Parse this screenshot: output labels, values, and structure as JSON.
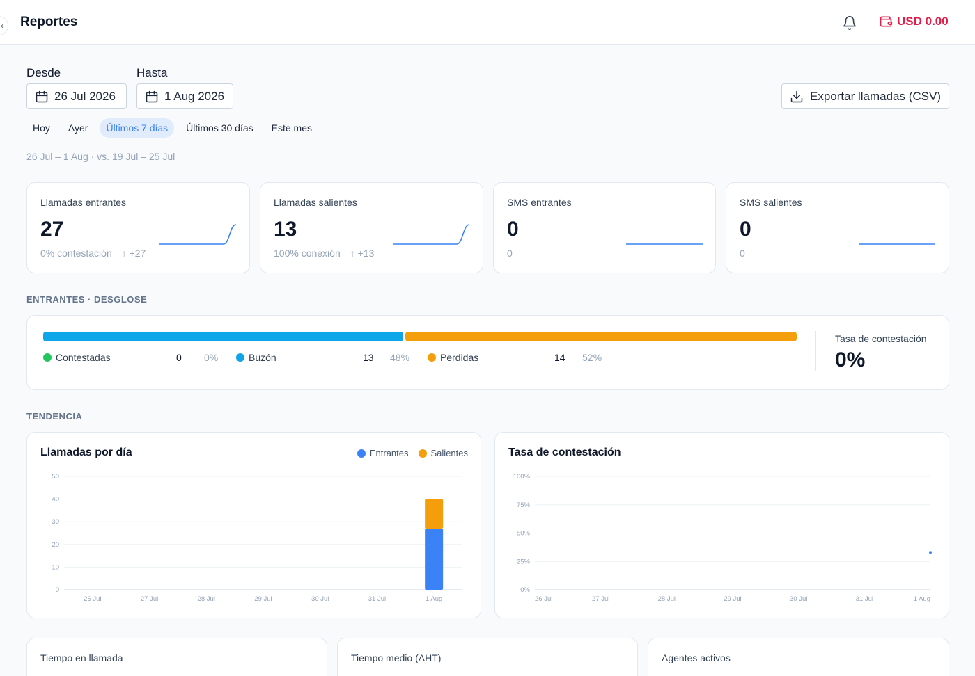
{
  "header": {
    "title": "Reportes",
    "balance": "USD 0.00"
  },
  "filters": {
    "from_label": "Desde",
    "to_label": "Hasta",
    "from_date": "26 Jul 2026",
    "to_date": "1 Aug 2026",
    "export_label": "Exportar llamadas (CSV)",
    "presets": [
      "Hoy",
      "Ayer",
      "Últimos 7 días",
      "Últimos 30 días",
      "Este mes"
    ],
    "active_preset": "Últimos 7 días",
    "range_text": "26 Jul – 1 Aug · vs. 19 Jul – 25 Jul"
  },
  "kpis": [
    {
      "label": "Llamadas entrantes",
      "value": "27",
      "sub": "0% contestación",
      "delta": "+27",
      "spark": [
        0,
        0,
        0,
        0,
        0,
        0,
        27
      ]
    },
    {
      "label": "Llamadas salientes",
      "value": "13",
      "sub": "100% conexión",
      "delta": "+13",
      "spark": [
        0,
        0,
        0,
        0,
        0,
        0,
        13
      ]
    },
    {
      "label": "SMS entrantes",
      "value": "0",
      "sub": "0",
      "delta": "",
      "spark": [
        0,
        0,
        0,
        0,
        0,
        0,
        0
      ]
    },
    {
      "label": "SMS salientes",
      "value": "0",
      "sub": "0",
      "delta": "",
      "spark": [
        0,
        0,
        0,
        0,
        0,
        0,
        0
      ]
    }
  ],
  "breakdown": {
    "section_title": "ENTRANTES · DESGLOSE",
    "items": [
      {
        "name": "Contestadas",
        "count": "0",
        "pct": "0%",
        "color": "#22c55e",
        "share": 0
      },
      {
        "name": "Buzón",
        "count": "13",
        "pct": "48%",
        "color": "#0ea5e9",
        "share": 0.48
      },
      {
        "name": "Perdidas",
        "count": "14",
        "pct": "52%",
        "color": "#f59e0b",
        "share": 0.52
      }
    ],
    "rate_label": "Tasa de contestación",
    "rate_value": "0%"
  },
  "trend": {
    "section_title": "TENDENCIA"
  },
  "chart_data": [
    {
      "type": "bar",
      "title": "Llamadas por día",
      "categories": [
        "26 Jul",
        "27 Jul",
        "28 Jul",
        "29 Jul",
        "30 Jul",
        "31 Jul",
        "1 Aug"
      ],
      "series": [
        {
          "name": "Entrantes",
          "values": [
            0,
            0,
            0,
            0,
            0,
            0,
            27
          ],
          "color": "#3b82f6"
        },
        {
          "name": "Salientes",
          "values": [
            0,
            0,
            0,
            0,
            0,
            0,
            13
          ],
          "color": "#f59e0b"
        }
      ],
      "stacked": true,
      "ylim": [
        0,
        50
      ],
      "yticks": [
        "0",
        "10",
        "20",
        "30",
        "40",
        "50"
      ],
      "grid": true
    },
    {
      "type": "scatter",
      "title": "Tasa de contestación",
      "categories": [
        "26 Jul",
        "27 Jul",
        "28 Jul",
        "29 Jul",
        "30 Jul",
        "31 Jul",
        "1 Aug"
      ],
      "series": [
        {
          "name": "",
          "points": [
            {
              "x": "1 Aug",
              "y": 33
            }
          ],
          "color": "#3b82f6"
        }
      ],
      "ylim": [
        0,
        100
      ],
      "yticks": [
        "0%",
        "25%",
        "50%",
        "75%",
        "100%"
      ],
      "grid": true
    }
  ],
  "bottom_cards": [
    {
      "label": "Tiempo en llamada"
    },
    {
      "label": "Tiempo medio (AHT)"
    },
    {
      "label": "Agentes activos"
    }
  ]
}
